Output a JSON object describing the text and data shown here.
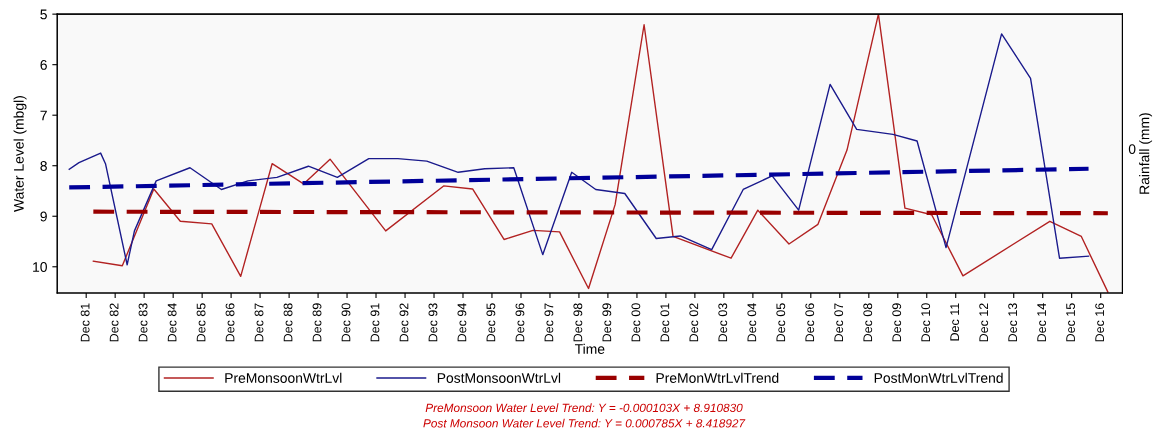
{
  "chart_data": {
    "type": "line",
    "xlabel": "Time",
    "ylabel": "Water Level (mbgl)",
    "y2label": "Rainfall (mm)",
    "xlim": [
      "1980-12",
      "2017-09"
    ],
    "xticks": [
      {
        "value": "1981-12",
        "label": "Dec 81"
      },
      {
        "value": "1982-12",
        "label": "Dec 82"
      },
      {
        "value": "1983-12",
        "label": "Dec 83"
      },
      {
        "value": "1984-12",
        "label": "Dec 84"
      },
      {
        "value": "1985-12",
        "label": "Dec 85"
      },
      {
        "value": "1986-12",
        "label": "Dec 86"
      },
      {
        "value": "1987-12",
        "label": "Dec 87"
      },
      {
        "value": "1988-12",
        "label": "Dec 88"
      },
      {
        "value": "1989-12",
        "label": "Dec 89"
      },
      {
        "value": "1990-12",
        "label": "Dec 90"
      },
      {
        "value": "1991-12",
        "label": "Dec 91"
      },
      {
        "value": "1992-12",
        "label": "Dec 92"
      },
      {
        "value": "1993-12",
        "label": "Dec 93"
      },
      {
        "value": "1994-12",
        "label": "Dec 94"
      },
      {
        "value": "1995-12",
        "label": "Dec 95"
      },
      {
        "value": "1996-12",
        "label": "Dec 96"
      },
      {
        "value": "1997-12",
        "label": "Dec 97"
      },
      {
        "value": "1998-12",
        "label": "Dec 98"
      },
      {
        "value": "1999-12",
        "label": "Dec 99"
      },
      {
        "value": "2000-12",
        "label": "Dec 00"
      },
      {
        "value": "2001-12",
        "label": "Dec 01"
      },
      {
        "value": "2002-12",
        "label": "Dec 02"
      },
      {
        "value": "2003-12",
        "label": "Dec 03"
      },
      {
        "value": "2004-12",
        "label": "Dec 04"
      },
      {
        "value": "2005-12",
        "label": "Dec 05"
      },
      {
        "value": "2006-12",
        "label": "Dec 06"
      },
      {
        "value": "2007-12",
        "label": "Dec 07"
      },
      {
        "value": "2008-12",
        "label": "Dec 08"
      },
      {
        "value": "2009-12",
        "label": "Dec 09"
      },
      {
        "value": "2010-12",
        "label": "Dec 10"
      },
      {
        "value": "2011-12",
        "label": "Dec 11"
      },
      {
        "value": "2012-12",
        "label": "Dec 12"
      },
      {
        "value": "2013-12",
        "label": "Dec 13"
      },
      {
        "value": "2014-12",
        "label": "Dec 14"
      },
      {
        "value": "2015-12",
        "label": "Dec 15"
      },
      {
        "value": "2016-12",
        "label": "Dec 16"
      }
    ],
    "ylim": [
      10.52,
      5
    ],
    "yticks": [
      5,
      6,
      7,
      8,
      9,
      10
    ],
    "grid": false,
    "legend": "bottom",
    "marker": "none",
    "series": [
      {
        "name": "PreMonsoonWtrLvl",
        "color": "#b22222",
        "line_style": "solid",
        "x": [
          "1982-03",
          "1983-03",
          "1984-04",
          "1985-03",
          "1986-04",
          "1987-04",
          "1988-05",
          "1989-06",
          "1990-05",
          "1992-04",
          "1994-04",
          "1995-04",
          "1996-05",
          "1997-05",
          "1998-04",
          "1999-04",
          "2000-03",
          "2001-03",
          "2002-03",
          "2004-03",
          "2005-02",
          "2006-03",
          "2007-03",
          "2008-03",
          "2009-04",
          "2010-03",
          "2011-02",
          "2012-03",
          "2015-03",
          "2016-04",
          "2017-03"
        ],
        "values": [
          9.89,
          9.98,
          8.46,
          9.1,
          9.15,
          10.19,
          7.96,
          8.36,
          7.87,
          9.29,
          8.4,
          8.46,
          9.46,
          9.28,
          9.31,
          10.43,
          8.77,
          5.21,
          9.4,
          9.83,
          8.88,
          9.55,
          9.16,
          7.69,
          5.0,
          8.84,
          8.97,
          10.18,
          9.1,
          9.4,
          10.5
        ]
      },
      {
        "name": "PostMonsoonWtrLvl",
        "color": "#1a1a8c",
        "line_style": "solid",
        "x": [
          "1981-05",
          "1981-09",
          "1982-06",
          "1982-08",
          "1983-05",
          "1983-08",
          "1984-05",
          "1985-07",
          "1986-08",
          "1987-07",
          "1988-07",
          "1989-08",
          "1990-08",
          "1991-09",
          "1992-09",
          "1993-09",
          "1994-10",
          "1995-09",
          "1996-09",
          "1997-09",
          "1998-09",
          "1999-07",
          "2000-07",
          "2001-08",
          "2002-06",
          "2003-07",
          "2004-08",
          "2005-08",
          "2006-07",
          "2007-08",
          "2008-07",
          "2009-10",
          "2010-08",
          "2011-08",
          "2013-07",
          "2014-07",
          "2015-07",
          "2016-07"
        ],
        "values": [
          8.07,
          7.94,
          7.75,
          7.96,
          9.96,
          9.29,
          8.3,
          8.04,
          8.47,
          8.3,
          8.23,
          8.01,
          8.23,
          7.86,
          7.86,
          7.91,
          8.13,
          8.06,
          8.04,
          9.76,
          8.13,
          8.47,
          8.55,
          9.44,
          9.39,
          9.66,
          8.47,
          8.2,
          8.88,
          6.39,
          7.28,
          7.38,
          7.51,
          9.62,
          5.39,
          6.27,
          9.83,
          9.79
        ]
      },
      {
        "name": "PreMonWtrLvlTrend",
        "color": "#990000",
        "line_style": "dashed",
        "x": [
          "1982-03",
          "2017-03"
        ],
        "values": [
          8.91,
          8.94
        ]
      },
      {
        "name": "PostMonWtrLvlTrend",
        "color": "#000099",
        "line_style": "dashed",
        "x": [
          "1981-05",
          "2016-07"
        ],
        "values": [
          8.43,
          8.06
        ]
      }
    ],
    "annotations": [
      "0",
      "PreMonsoon Water Level Trend: Y = -0.000103X + 8.910830",
      "Post Monsoon Water Level Trend: Y = 0.000785X + 8.418927"
    ]
  }
}
